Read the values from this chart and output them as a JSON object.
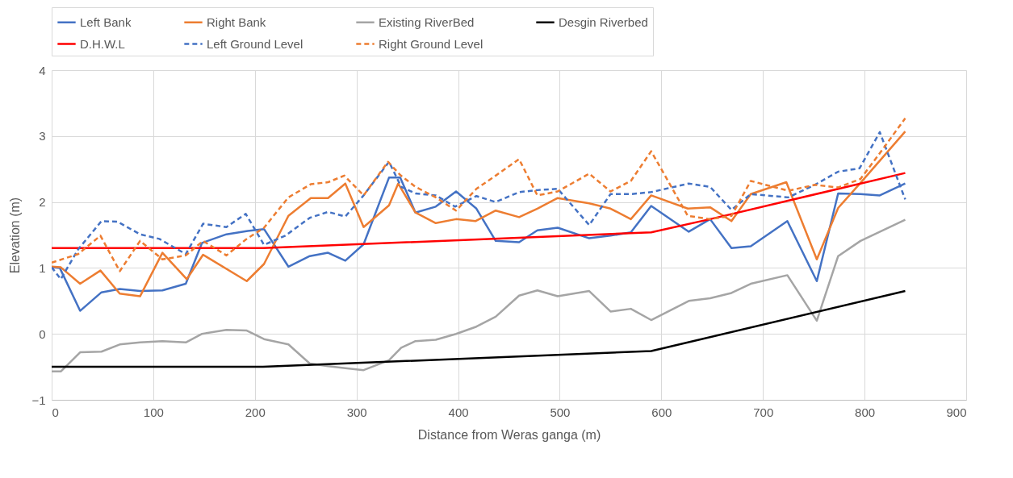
{
  "chart_data": {
    "type": "line",
    "xlabel": "Distance from Weras ganga (m)",
    "ylabel": "Elevation (m)",
    "xlim": [
      0,
      900
    ],
    "xticks": [
      0,
      100,
      200,
      300,
      400,
      500,
      600,
      700,
      800,
      900
    ],
    "ylim": [
      -1,
      4
    ],
    "yticks": [
      -1,
      0,
      1,
      2,
      3,
      4
    ],
    "grid": true,
    "legend": "top",
    "series": [
      {
        "name": "Left Bank",
        "color": "#4472c4",
        "line_style": "solid",
        "x": [
          0,
          8,
          28,
          49,
          67,
          87,
          109,
          132,
          148,
          172,
          193,
          209,
          233,
          254,
          272,
          289,
          307,
          332,
          343,
          358,
          378,
          398,
          418,
          437,
          460,
          478,
          498,
          529,
          550,
          570,
          590,
          627,
          648,
          669,
          688,
          724,
          753,
          774,
          796,
          815,
          840
        ],
        "values": [
          1.01,
          1.0,
          0.35,
          0.63,
          0.68,
          0.65,
          0.66,
          0.76,
          1.38,
          1.51,
          1.56,
          1.59,
          1.02,
          1.18,
          1.23,
          1.11,
          1.36,
          2.37,
          2.37,
          1.84,
          1.93,
          2.16,
          1.9,
          1.41,
          1.39,
          1.57,
          1.61,
          1.45,
          1.49,
          1.54,
          1.94,
          1.55,
          1.74,
          1.3,
          1.33,
          1.71,
          0.8,
          2.13,
          2.12,
          2.1,
          2.28
        ]
      },
      {
        "name": "Right Bank",
        "color": "#ed7d31",
        "line_style": "solid",
        "x": [
          0,
          9,
          28,
          48,
          67,
          87,
          109,
          133,
          149,
          192,
          209,
          233,
          255,
          272,
          289,
          307,
          332,
          341,
          358,
          378,
          398,
          417,
          437,
          460,
          478,
          498,
          529,
          550,
          570,
          590,
          626,
          648,
          669,
          688,
          723,
          753,
          774,
          796,
          840
        ],
        "values": [
          1.02,
          1.01,
          0.76,
          0.96,
          0.61,
          0.57,
          1.23,
          0.83,
          1.2,
          0.8,
          1.06,
          1.79,
          2.06,
          2.06,
          2.28,
          1.62,
          1.95,
          2.28,
          1.84,
          1.68,
          1.74,
          1.71,
          1.87,
          1.77,
          1.9,
          2.06,
          1.98,
          1.9,
          1.74,
          2.1,
          1.9,
          1.92,
          1.71,
          2.12,
          2.3,
          1.13,
          1.91,
          2.29,
          3.07
        ]
      },
      {
        "name": "Existing RiverBed",
        "color": "#a5a5a5",
        "line_style": "solid",
        "x": [
          0,
          9,
          28,
          49,
          67,
          87,
          109,
          132,
          148,
          172,
          192,
          209,
          233,
          254,
          272,
          289,
          307,
          332,
          344,
          358,
          378,
          398,
          418,
          437,
          460,
          478,
          498,
          529,
          550,
          570,
          590,
          627,
          648,
          669,
          688,
          724,
          753,
          774,
          796,
          840
        ],
        "values": [
          -0.57,
          -0.57,
          -0.28,
          -0.27,
          -0.16,
          -0.13,
          -0.11,
          -0.13,
          0.0,
          0.06,
          0.05,
          -0.08,
          -0.16,
          -0.45,
          -0.49,
          -0.52,
          -0.55,
          -0.4,
          -0.21,
          -0.11,
          -0.09,
          0.0,
          0.11,
          0.26,
          0.58,
          0.66,
          0.57,
          0.65,
          0.34,
          0.38,
          0.21,
          0.5,
          0.54,
          0.62,
          0.76,
          0.89,
          0.2,
          1.18,
          1.41,
          1.73
        ]
      },
      {
        "name": "Desgin Riverbed",
        "color": "#000000",
        "line_style": "solid",
        "x": [
          0,
          208,
          590,
          840
        ],
        "values": [
          -0.5,
          -0.5,
          -0.26,
          0.65
        ]
      },
      {
        "name": "D.H.W.L",
        "color": "#ff0000",
        "line_style": "solid",
        "x": [
          0,
          208,
          590,
          648,
          840
        ],
        "values": [
          1.3,
          1.3,
          1.54,
          1.74,
          2.44
        ]
      },
      {
        "name": "Left Ground Level",
        "color": "#4472c4",
        "line_style": "dashed",
        "x": [
          0,
          9,
          26,
          49,
          65,
          87,
          106,
          132,
          149,
          172,
          191,
          209,
          230,
          254,
          272,
          289,
          307,
          332,
          344,
          358,
          378,
          397,
          418,
          437,
          460,
          478,
          498,
          529,
          550,
          570,
          590,
          627,
          648,
          669,
          688,
          725,
          751,
          774,
          795,
          815,
          840
        ],
        "values": [
          1.01,
          0.83,
          1.28,
          1.71,
          1.7,
          1.51,
          1.44,
          1.21,
          1.67,
          1.62,
          1.82,
          1.35,
          1.49,
          1.76,
          1.85,
          1.78,
          2.1,
          2.61,
          2.23,
          2.13,
          2.1,
          1.93,
          2.09,
          2.0,
          2.15,
          2.18,
          2.2,
          1.65,
          2.12,
          2.12,
          2.15,
          2.28,
          2.23,
          1.88,
          2.12,
          2.07,
          2.26,
          2.46,
          2.51,
          3.06,
          2.04
        ]
      },
      {
        "name": "Right Ground Level",
        "color": "#ed7d31",
        "line_style": "dashed",
        "x": [
          0,
          26,
          48,
          67,
          87,
          109,
          132,
          149,
          172,
          191,
          209,
          233,
          255,
          272,
          288,
          307,
          331,
          343,
          358,
          378,
          398,
          418,
          437,
          460,
          478,
          498,
          529,
          550,
          570,
          590,
          626,
          648,
          669,
          688,
          725,
          751,
          774,
          796,
          815,
          840
        ],
        "values": [
          1.08,
          1.21,
          1.49,
          0.95,
          1.41,
          1.13,
          1.19,
          1.41,
          1.19,
          1.43,
          1.61,
          2.07,
          2.27,
          2.3,
          2.4,
          2.1,
          2.61,
          2.41,
          2.23,
          2.07,
          1.87,
          2.2,
          2.4,
          2.65,
          2.1,
          2.16,
          2.43,
          2.16,
          2.32,
          2.77,
          1.79,
          1.74,
          1.79,
          2.32,
          2.17,
          2.26,
          2.22,
          2.35,
          2.74,
          3.27
        ]
      }
    ]
  }
}
